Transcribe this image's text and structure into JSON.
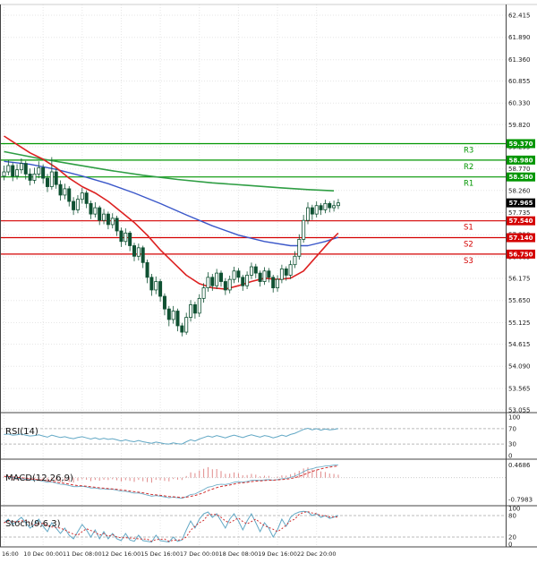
{
  "colors": {
    "background": "#ffffff",
    "grid": "#e6e6e6",
    "candle": "#0f5132",
    "candle_bull_fill": "#ffffff",
    "resistance": "#009600",
    "support": "#d40000",
    "current_price_box": "#000000",
    "oscillator": "#62a8c5",
    "oscillator_secondary": "#d03030",
    "histogram": "#e08a8a",
    "frame": "#444444"
  },
  "chart_data": {
    "type": "candlestick",
    "x_labels": [
      "16:00",
      "10 Dec 00:00",
      "11 Dec 08:00",
      "12 Dec 16:00",
      "15 Dec 16:00",
      "17 Dec 00:00",
      "18 Dec 08:00",
      "19 Dec 16:00",
      "22 Dec 20:00"
    ],
    "price_axis_ticks": [
      62.415,
      61.89,
      61.36,
      60.855,
      60.33,
      59.82,
      59.295,
      58.77,
      58.26,
      57.735,
      57.21,
      56.685,
      56.175,
      55.65,
      55.125,
      54.615,
      54.09,
      53.565,
      53.055
    ],
    "levels": {
      "resistance": [
        {
          "name": "R3",
          "price": 59.37
        },
        {
          "name": "R2",
          "price": 58.98
        },
        {
          "name": "R1",
          "price": 58.58
        }
      ],
      "support": [
        {
          "name": "S1",
          "price": 57.54
        },
        {
          "name": "S2",
          "price": 57.14
        },
        {
          "name": "S3",
          "price": 56.75
        }
      ],
      "current_price": 57.965
    },
    "candles": [
      [
        58.6,
        58.85,
        58.5,
        58.7
      ],
      [
        58.7,
        58.98,
        58.62,
        58.85
      ],
      [
        58.85,
        58.92,
        58.48,
        58.6
      ],
      [
        58.6,
        58.88,
        58.52,
        58.75
      ],
      [
        58.75,
        59.02,
        58.66,
        58.9
      ],
      [
        58.9,
        58.96,
        58.52,
        58.65
      ],
      [
        58.65,
        58.78,
        58.38,
        58.5
      ],
      [
        58.5,
        58.8,
        58.42,
        58.65
      ],
      [
        58.65,
        58.95,
        58.55,
        58.8
      ],
      [
        58.8,
        58.88,
        58.42,
        58.55
      ],
      [
        58.55,
        58.65,
        58.22,
        58.35
      ],
      [
        58.35,
        59.05,
        58.28,
        58.7
      ],
      [
        58.7,
        58.78,
        58.3,
        58.4
      ],
      [
        58.4,
        58.5,
        58.02,
        58.15
      ],
      [
        58.15,
        58.42,
        58.05,
        58.3
      ],
      [
        58.3,
        58.36,
        57.88,
        58.0
      ],
      [
        58.0,
        58.1,
        57.68,
        57.8
      ],
      [
        57.8,
        58.15,
        57.72,
        58.05
      ],
      [
        58.05,
        58.32,
        57.95,
        58.2
      ],
      [
        58.2,
        58.26,
        57.84,
        57.95
      ],
      [
        57.95,
        58.02,
        57.58,
        57.7
      ],
      [
        57.7,
        57.98,
        57.62,
        57.85
      ],
      [
        57.85,
        57.9,
        57.44,
        57.55
      ],
      [
        57.55,
        57.82,
        57.46,
        57.7
      ],
      [
        57.7,
        57.76,
        57.34,
        57.45
      ],
      [
        57.45,
        57.72,
        57.36,
        57.6
      ],
      [
        57.6,
        57.66,
        57.18,
        57.3
      ],
      [
        57.3,
        57.38,
        56.92,
        57.05
      ],
      [
        57.05,
        57.36,
        56.96,
        57.25
      ],
      [
        57.25,
        57.3,
        56.82,
        56.95
      ],
      [
        56.95,
        57.02,
        56.58,
        56.7
      ],
      [
        56.7,
        57.0,
        56.6,
        56.9
      ],
      [
        56.9,
        56.95,
        56.42,
        56.55
      ],
      [
        56.55,
        56.62,
        56.06,
        56.2
      ],
      [
        56.2,
        56.28,
        55.76,
        55.9
      ],
      [
        55.9,
        56.22,
        55.8,
        56.1
      ],
      [
        56.1,
        56.16,
        55.62,
        55.75
      ],
      [
        55.75,
        55.82,
        55.3,
        55.45
      ],
      [
        55.45,
        55.52,
        55.04,
        55.2
      ],
      [
        55.2,
        55.52,
        55.1,
        55.4
      ],
      [
        55.4,
        55.46,
        54.92,
        55.05
      ],
      [
        55.05,
        55.12,
        54.8,
        54.9
      ],
      [
        54.9,
        55.36,
        54.84,
        55.25
      ],
      [
        55.25,
        55.66,
        55.15,
        55.55
      ],
      [
        55.55,
        55.62,
        55.22,
        55.35
      ],
      [
        55.35,
        55.8,
        55.26,
        55.7
      ],
      [
        55.7,
        56.06,
        55.6,
        55.95
      ],
      [
        55.95,
        56.32,
        55.86,
        56.2
      ],
      [
        56.2,
        56.28,
        55.88,
        56.0
      ],
      [
        56.0,
        56.4,
        55.92,
        56.3
      ],
      [
        56.3,
        56.36,
        55.98,
        56.1
      ],
      [
        56.1,
        56.18,
        55.78,
        55.9
      ],
      [
        55.9,
        56.24,
        55.82,
        56.15
      ],
      [
        56.15,
        56.45,
        56.06,
        56.35
      ],
      [
        56.35,
        56.42,
        56.08,
        56.2
      ],
      [
        56.2,
        56.26,
        55.88,
        56.0
      ],
      [
        56.0,
        56.34,
        55.92,
        56.25
      ],
      [
        56.25,
        56.55,
        56.16,
        56.45
      ],
      [
        56.45,
        56.52,
        56.18,
        56.3
      ],
      [
        56.3,
        56.36,
        55.98,
        56.1
      ],
      [
        56.1,
        56.44,
        56.02,
        56.35
      ],
      [
        56.35,
        56.42,
        56.08,
        56.2
      ],
      [
        56.2,
        56.26,
        55.84,
        55.95
      ],
      [
        55.95,
        56.25,
        55.86,
        56.15
      ],
      [
        56.15,
        56.5,
        56.06,
        56.4
      ],
      [
        56.4,
        56.46,
        56.12,
        56.25
      ],
      [
        56.25,
        56.6,
        56.16,
        56.5
      ],
      [
        56.5,
        56.82,
        56.42,
        56.7
      ],
      [
        56.7,
        57.22,
        56.62,
        57.1
      ],
      [
        57.1,
        57.68,
        57.02,
        57.55
      ],
      [
        57.55,
        57.98,
        57.46,
        57.85
      ],
      [
        57.85,
        57.92,
        57.56,
        57.7
      ],
      [
        57.7,
        58.0,
        57.62,
        57.9
      ],
      [
        57.9,
        57.96,
        57.68,
        57.8
      ],
      [
        57.8,
        58.04,
        57.72,
        57.95
      ],
      [
        57.95,
        58.0,
        57.74,
        57.85
      ],
      [
        57.85,
        58.02,
        57.76,
        57.9
      ],
      [
        57.9,
        58.06,
        57.82,
        57.965
      ]
    ],
    "moving_averages": [
      {
        "name": "ma-slow-green",
        "color": "#2f9e44",
        "width": 1.6,
        "points": [
          [
            0,
            59.18
          ],
          [
            8,
            59.02
          ],
          [
            16,
            58.88
          ],
          [
            24,
            58.74
          ],
          [
            32,
            58.62
          ],
          [
            40,
            58.52
          ],
          [
            48,
            58.44
          ],
          [
            56,
            58.38
          ],
          [
            64,
            58.32
          ],
          [
            70,
            58.28
          ],
          [
            76,
            58.25
          ]
        ]
      },
      {
        "name": "ma-mid-blue",
        "color": "#3a57c9",
        "width": 1.4,
        "points": [
          [
            0,
            58.95
          ],
          [
            6,
            58.88
          ],
          [
            12,
            58.76
          ],
          [
            18,
            58.6
          ],
          [
            24,
            58.42
          ],
          [
            30,
            58.2
          ],
          [
            36,
            57.95
          ],
          [
            42,
            57.68
          ],
          [
            48,
            57.42
          ],
          [
            54,
            57.2
          ],
          [
            60,
            57.05
          ],
          [
            66,
            56.95
          ],
          [
            70,
            56.95
          ],
          [
            74,
            57.05
          ],
          [
            77,
            57.15
          ]
        ]
      },
      {
        "name": "ma-fast-red",
        "color": "#dd2222",
        "width": 1.6,
        "points": [
          [
            0,
            59.55
          ],
          [
            3,
            59.35
          ],
          [
            6,
            59.15
          ],
          [
            9,
            59.0
          ],
          [
            12,
            58.8
          ],
          [
            15,
            58.55
          ],
          [
            18,
            58.35
          ],
          [
            21,
            58.2
          ],
          [
            24,
            58.0
          ],
          [
            27,
            57.75
          ],
          [
            30,
            57.5
          ],
          [
            33,
            57.2
          ],
          [
            36,
            56.85
          ],
          [
            39,
            56.55
          ],
          [
            42,
            56.25
          ],
          [
            45,
            56.05
          ],
          [
            48,
            55.95
          ],
          [
            51,
            55.92
          ],
          [
            54,
            56.0
          ],
          [
            57,
            56.1
          ],
          [
            60,
            56.18
          ],
          [
            63,
            56.15
          ],
          [
            66,
            56.18
          ],
          [
            69,
            56.35
          ],
          [
            72,
            56.7
          ],
          [
            75,
            57.05
          ],
          [
            77,
            57.25
          ]
        ]
      }
    ],
    "indicators": {
      "rsi": {
        "title": "RSI(14)",
        "axis_ticks": [
          100,
          70,
          30,
          0
        ],
        "threshold_levels": [
          70,
          30
        ],
        "range": [
          0,
          100
        ],
        "values": [
          55,
          56,
          53,
          54,
          56,
          53,
          51,
          52,
          54,
          51,
          48,
          53,
          50,
          47,
          49,
          46,
          44,
          47,
          49,
          46,
          43,
          46,
          42,
          45,
          42,
          44,
          41,
          38,
          41,
          38,
          36,
          39,
          36,
          34,
          32,
          35,
          33,
          31,
          30,
          33,
          31,
          30,
          36,
          41,
          38,
          43,
          47,
          51,
          48,
          52,
          49,
          46,
          50,
          53,
          50,
          47,
          51,
          54,
          51,
          48,
          52,
          50,
          46,
          49,
          53,
          50,
          55,
          58,
          63,
          68,
          71,
          67,
          70,
          66,
          69,
          67,
          68,
          70
        ]
      },
      "macd": {
        "title": "MACD(12,26,9)",
        "axis_ticks": [
          0.4686,
          -0.7983
        ],
        "range": [
          -0.9,
          0.55
        ],
        "macd": [
          0.05,
          0.03,
          0.0,
          -0.02,
          -0.03,
          -0.06,
          -0.08,
          -0.09,
          -0.1,
          -0.13,
          -0.17,
          -0.16,
          -0.2,
          -0.24,
          -0.25,
          -0.29,
          -0.33,
          -0.33,
          -0.32,
          -0.34,
          -0.38,
          -0.38,
          -0.41,
          -0.41,
          -0.43,
          -0.43,
          -0.46,
          -0.5,
          -0.5,
          -0.53,
          -0.57,
          -0.56,
          -0.6,
          -0.64,
          -0.68,
          -0.66,
          -0.68,
          -0.71,
          -0.74,
          -0.72,
          -0.74,
          -0.76,
          -0.7,
          -0.62,
          -0.6,
          -0.52,
          -0.44,
          -0.35,
          -0.32,
          -0.26,
          -0.24,
          -0.25,
          -0.22,
          -0.17,
          -0.15,
          -0.16,
          -0.14,
          -0.1,
          -0.09,
          -0.1,
          -0.08,
          -0.07,
          -0.09,
          -0.07,
          -0.04,
          -0.03,
          0.01,
          0.06,
          0.13,
          0.22,
          0.3,
          0.33,
          0.38,
          0.4,
          0.43,
          0.44,
          0.46,
          0.47
        ]
      },
      "stoch": {
        "title": "Stoch(9,6,3)",
        "axis_ticks": [
          100,
          80,
          20,
          0
        ],
        "threshold_levels": [
          80,
          20
        ],
        "range": [
          0,
          100
        ],
        "k": [
          60,
          70,
          55,
          65,
          75,
          60,
          45,
          55,
          70,
          50,
          35,
          60,
          45,
          30,
          45,
          25,
          15,
          35,
          55,
          40,
          20,
          40,
          15,
          35,
          15,
          30,
          15,
          10,
          30,
          12,
          8,
          25,
          10,
          8,
          6,
          25,
          10,
          8,
          6,
          20,
          8,
          12,
          40,
          65,
          45,
          70,
          85,
          90,
          75,
          85,
          65,
          45,
          70,
          85,
          65,
          40,
          65,
          85,
          60,
          35,
          60,
          45,
          20,
          40,
          70,
          50,
          75,
          85,
          90,
          92,
          90,
          80,
          85,
          75,
          80,
          72,
          76,
          80
        ]
      }
    }
  }
}
